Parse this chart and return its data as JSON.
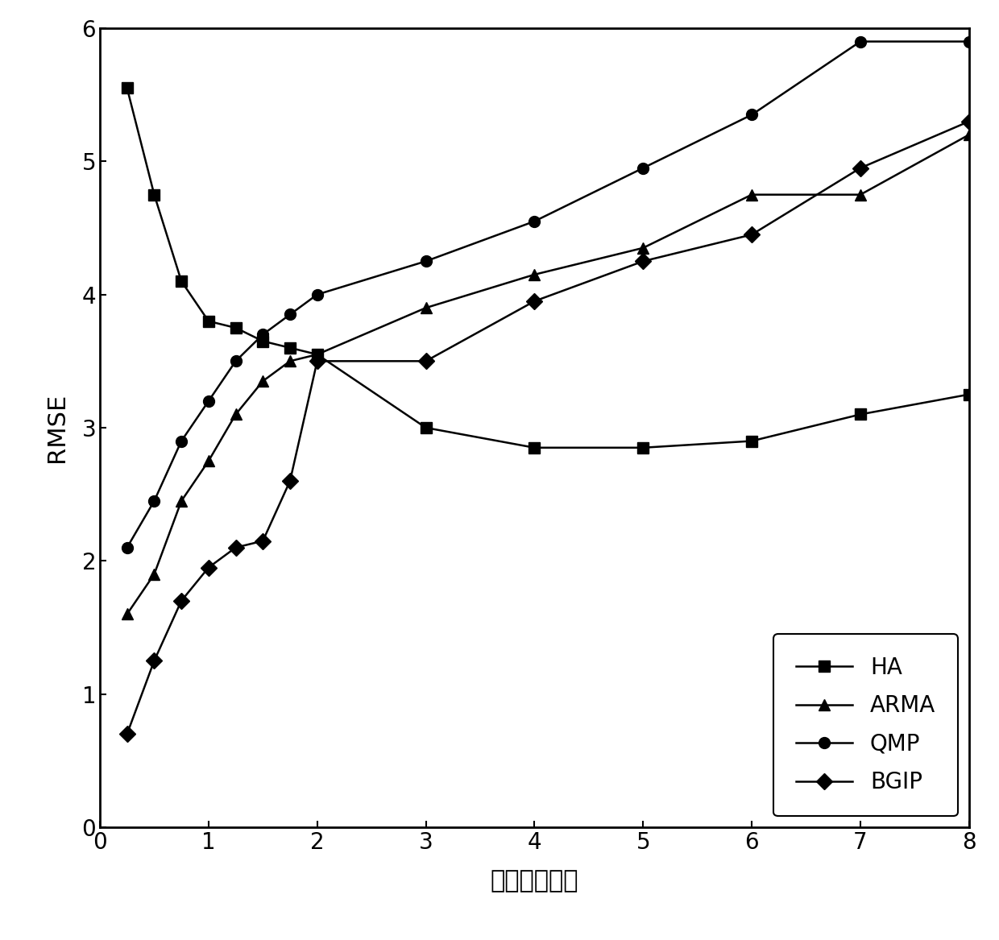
{
  "x": [
    0.25,
    0.5,
    0.75,
    1.0,
    1.25,
    1.5,
    1.75,
    2.0,
    3.0,
    4.0,
    5.0,
    6.0,
    7.0,
    8.0
  ],
  "HA": [
    5.55,
    4.75,
    4.1,
    3.8,
    3.75,
    3.65,
    3.6,
    3.55,
    3.0,
    2.85,
    2.85,
    2.9,
    3.1,
    3.25
  ],
  "ARMA": [
    1.6,
    1.9,
    2.45,
    2.75,
    3.1,
    3.35,
    3.5,
    3.55,
    3.9,
    4.15,
    4.35,
    4.75,
    4.75,
    5.2
  ],
  "QMP": [
    2.1,
    2.45,
    2.9,
    3.2,
    3.5,
    3.7,
    3.85,
    4.0,
    4.25,
    4.55,
    4.95,
    5.35,
    5.9,
    5.9
  ],
  "BGIP": [
    0.7,
    1.25,
    1.7,
    1.95,
    2.1,
    2.15,
    2.6,
    3.5,
    3.5,
    3.95,
    4.25,
    4.45,
    4.95,
    5.3
  ],
  "ylabel": "RMSE",
  "xlabel": "时间（小时）",
  "xlim": [
    0,
    8
  ],
  "ylim": [
    0,
    6
  ],
  "xticks": [
    0,
    1,
    2,
    3,
    4,
    5,
    6,
    7,
    8
  ],
  "yticks": [
    0,
    1,
    2,
    3,
    4,
    5,
    6
  ],
  "color": "#000000",
  "linewidth": 1.8,
  "markersize": 10
}
